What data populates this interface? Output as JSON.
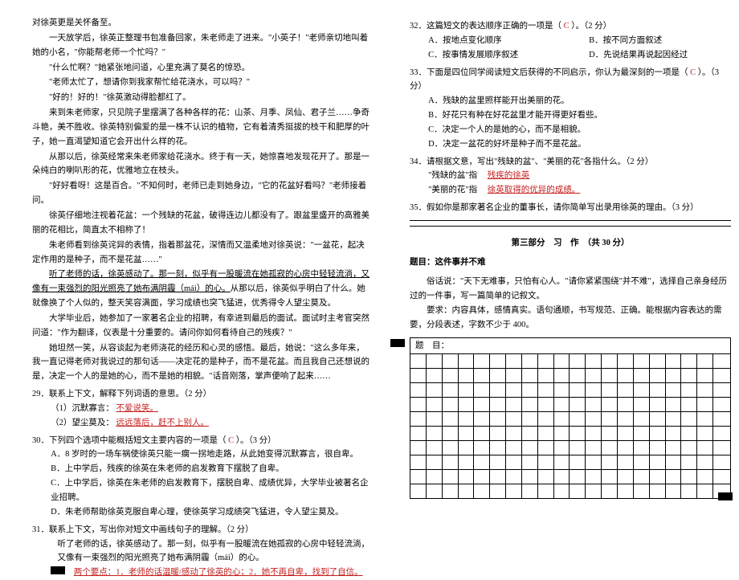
{
  "left": {
    "p1": "对徐英更是关怀备至。",
    "p2": "一天放学后，徐英正整理书包准备回家，朱老师走了进来。\"小英子！\"老师亲切地叫着她的小名，\"你能帮老师一个忙吗？\"",
    "p3": "\"什么忙啊？\"她紧张地问道，心里充满了莫名的惊恐。",
    "p4": "\"老师太忙了，想请你到我家帮忙给花浇水，可以吗？\"",
    "p5": "\"好的！好的！\"徐英激动得脸都红了。",
    "p6": "来到朱老师家，只见院子里摆满了各种各样的花：山茶、月季、凤仙、君子兰……争奇斗艳，美不胜收。徐英特别偏爱的是一株不认识的植物，它有着清秀挺拔的枝干和肥厚的叶子，她一直渴望知道它会开出什么样的花。",
    "p7": "从那以后，徐英经常来朱老师家给花浇水。终于有一天，她惊喜地发现花开了。那是一朵纯白的喇叭形的花，优雅地立在枝头。",
    "p8": "\"好好看呀！这是百合。\"不知何时，老师已走到她身边，\"它的花盆好看吗？\"老师接着问。",
    "p9": "徐英仔细地注视着花盆：一个残缺的花盆，破得连边儿都没有了。跟盆里盛开的高雅美丽的花相比，简直太不相称了！",
    "p10": "朱老师看到徐英诧异的表情，指着那盆花，深情而又温柔地对徐英说：\"一盆花，起决定作用的是种子，而不是花盆……\"",
    "p11a": "听了老师的话，徐英感动了。那一刻，似乎有一股暖流在她孤寂的心房中轻轻流淌，又像有一束强烈的阳光照亮了她布满阴霾（mái）的心。",
    "p11b": "从那以后，徐英似乎明白了什么。她就像换了个人似的，整天笑容满面，学习成绩也突飞猛进，优秀得令人望尘莫及。",
    "p12": "大学毕业后，她参加了一家著名企业的招聘，有幸进到最后的面试。面试时主考官突然问道：\"作为翻译，仪表是十分重要的。请问你如何看待自己的残疾？\"",
    "p13": "她坦然一笑，从容谈起为老师浇花的经历和心灵的感悟。最后，她说：\"这么多年来，我一直记得老师对我说过的那句话——决定花的是种子，而不是花盆。而且我自己还想说的是，决定一个人的是她的心，而不是她的相貌。\"话音刚落，掌声便响了起来……",
    "q29": {
      "stem": "29．联系上下文，解释下列词语的意思。（2 分）",
      "s1_label": "（1）沉默寡言：",
      "s1_ans": "不爱说笑。",
      "s2_label": "（2）望尘莫及：",
      "s2_ans": "远远落后，赶不上别人。"
    },
    "q30": {
      "stem_a": "30．下列四个选项中能概括短文主要内容的一项是（",
      "ans": "C",
      "stem_b": "）。（3 分）",
      "A": "A．8 岁时的一场车祸使徐英只能一瘸一拐地走路，从此她变得沉默寡言，很自卑。",
      "B": "B．上中学后，残疾的徐英在朱老师的启发教育下摆脱了自卑。",
      "C": "C．上中学后，徐英在朱老师的启发教育下，摆脱自卑、成绩优异，大学毕业被著名企业招聘。",
      "D": "D．朱老师帮助徐英克服自卑心理，使徐英学习成绩突飞猛进，令人望尘莫及。"
    },
    "q31": {
      "stem": "31．联系上下文，写出你对短文中画线句子的理解。（2 分）",
      "quote": "听了老师的话，徐英感动了。那一刻，似乎有一股暖流在她孤寂的心房中轻轻流淌，又像有一束强烈的阳光照亮了她布满阴霾（mái）的心。",
      "ans": "两个要点：1．老师的话温暖/感动了徐英的心；2．她不再自卑，找到了自信。"
    }
  },
  "right": {
    "q32": {
      "stem_a": "32．这篇短文的表达顺序正确的一项是（",
      "ans": "C",
      "stem_b": "）。（2 分）",
      "A": "A．按地点变化顺序",
      "B": "B．按不同方面叙述",
      "C": "C．按事情发展顺序叙述",
      "D": "D．先说结果再说起因经过"
    },
    "q33": {
      "stem_a": "33．下面是四位同学阅读短文后获得的不同启示，你认为最深刻的一项是（",
      "ans": "C",
      "stem_b": "）。（3 分）",
      "A": "A．残缺的盆里照样能开出美丽的花。",
      "B": "B．好花只有种在好花盆里才能开得更好看些。",
      "C": "C．决定一个人的是她的心，而不是相貌。",
      "D": "D．决定一盆花的好坏是种子而不是花盆。"
    },
    "q34": {
      "stem": "34．请根据文意，写出\"残缺的盆\"、\"美丽的花\"各指什么。（2 分）",
      "l1_label": "\"残缺的盆\"指",
      "l1_ans": "残疾的徐英",
      "l2_label": "\"美丽的花\"指",
      "l2_ans": "徐英取得的优异的成绩。"
    },
    "q35": {
      "stem": "35．假如你是那家著名企业的董事长，请你简单写出录用徐英的理由。（3 分）"
    },
    "section": "第三部分　习　作　（共 30 分）",
    "essay_title_label": "题目：",
    "essay_title": "这件事并不难",
    "essay_p1": "俗话说：\"天下无难事，只怕有心人。\"请你紧紧围绕\"并不难\"，选择自己亲身经历过的一件事，写一篇简单的记叙文。",
    "essay_p2": "要求：内容具体，感情真实。语句通顺，书写规范、正确。能根据内容表达的需要，分段表述，字数不少于 400。",
    "grid_title": "题　目："
  },
  "style": {
    "red_color": "#c62020",
    "body_fontsize": 10.5,
    "grid_cols": 20,
    "grid_rows": 10
  }
}
